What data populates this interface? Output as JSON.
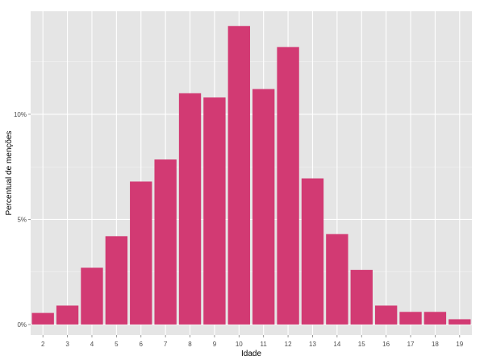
{
  "chart_data": {
    "type": "bar",
    "xlabel": "Idade",
    "ylabel": "Percentual de menções",
    "categories": [
      "2",
      "3",
      "4",
      "5",
      "6",
      "7",
      "8",
      "9",
      "10",
      "11",
      "12",
      "13",
      "14",
      "15",
      "16",
      "17",
      "18",
      "19"
    ],
    "values": [
      0.55,
      0.9,
      2.7,
      4.2,
      6.8,
      7.85,
      11.0,
      10.8,
      14.2,
      11.2,
      13.2,
      6.95,
      4.3,
      2.6,
      0.9,
      0.6,
      0.6,
      0.25
    ],
    "y_ticks": [
      0,
      5,
      10
    ],
    "y_tick_labels": [
      "0%",
      "5%",
      "10%"
    ],
    "ylim": [
      -0.5,
      14.9
    ],
    "grid": true,
    "colors": {
      "bar": "#d23a73",
      "panel": "#e5e5e5",
      "grid_major": "#ffffff",
      "grid_minor": "#f2f2f2"
    }
  }
}
